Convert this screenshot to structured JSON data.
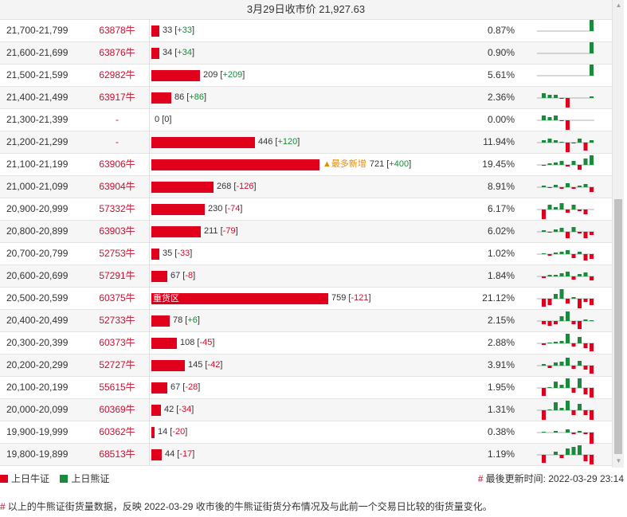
{
  "header": {
    "title": "3月29日收市价 21,927.63"
  },
  "colors": {
    "bull": "#e0001b",
    "bear": "#1a8a3c",
    "accent": "#e88a00"
  },
  "rows": [
    {
      "range": "21,700-21,799",
      "code": "63878牛",
      "qty": 33,
      "qty_text": "33",
      "change": "+33",
      "pct": "0.87%",
      "spark": [
        0,
        0,
        0,
        0,
        0,
        0,
        0,
        0,
        14
      ]
    },
    {
      "range": "21,600-21,699",
      "code": "63876牛",
      "qty": 34,
      "qty_text": "34",
      "change": "+34",
      "pct": "0.90%",
      "spark": [
        0,
        0,
        0,
        0,
        0,
        0,
        0,
        0,
        14
      ]
    },
    {
      "range": "21,500-21,599",
      "code": "62982牛",
      "qty": 209,
      "qty_text": "209",
      "change": "+209",
      "pct": "5.61%",
      "spark": [
        0,
        0,
        0,
        0,
        0,
        0,
        0,
        0,
        14
      ]
    },
    {
      "range": "21,400-21,499",
      "code": "63917牛",
      "qty": 86,
      "qty_text": "86",
      "change": "+86",
      "pct": "2.36%",
      "spark": [
        6,
        4,
        4,
        -1,
        -12,
        0,
        0,
        0,
        2
      ]
    },
    {
      "range": "21,300-21,399",
      "code": "-",
      "qty": 0,
      "qty_text": "0",
      "change": "0",
      "pct": "0.00%",
      "spark": [
        6,
        4,
        6,
        -1,
        -12,
        0,
        0,
        0,
        0
      ]
    },
    {
      "range": "21,200-21,299",
      "code": "-",
      "qty": 446,
      "qty_text": "446",
      "change": "+120",
      "pct": "11.94%",
      "spark": [
        3,
        5,
        3,
        1,
        -12,
        -1,
        5,
        -10,
        3
      ]
    },
    {
      "range": "21,100-21,199",
      "code": "63906牛",
      "qty": 721,
      "qty_text": "721",
      "change": "+400",
      "pct": "19.45%",
      "tag": "▲最多新增",
      "spark": [
        -1,
        2,
        3,
        5,
        -2,
        5,
        -6,
        8,
        12
      ]
    },
    {
      "range": "21,000-21,099",
      "code": "63904牛",
      "qty": 268,
      "qty_text": "268",
      "change": "-126",
      "pct": "8.91%",
      "spark": [
        2,
        -1,
        3,
        -2,
        5,
        -2,
        2,
        4,
        -6
      ]
    },
    {
      "range": "20,900-20,999",
      "code": "57332牛",
      "qty": 230,
      "qty_text": "230",
      "change": "-74",
      "pct": "6.17%",
      "spark": [
        -12,
        6,
        3,
        8,
        -4,
        6,
        -2,
        -6,
        0
      ]
    },
    {
      "range": "20,800-20,899",
      "code": "63903牛",
      "qty": 211,
      "qty_text": "211",
      "change": "-79",
      "pct": "6.02%",
      "spark": [
        2,
        -1,
        3,
        5,
        -8,
        6,
        -2,
        -8,
        -4
      ]
    },
    {
      "range": "20,700-20,799",
      "code": "52753牛",
      "qty": 35,
      "qty_text": "35",
      "change": "-33",
      "pct": "1.02%",
      "spark": [
        1,
        -2,
        2,
        3,
        5,
        -5,
        3,
        -8,
        -6
      ]
    },
    {
      "range": "20,600-20,699",
      "code": "57291牛",
      "qty": 67,
      "qty_text": "67",
      "change": "-8",
      "pct": "1.84%",
      "spark": [
        -2,
        2,
        2,
        4,
        6,
        -4,
        3,
        5,
        -5
      ]
    },
    {
      "range": "20,500-20,599",
      "code": "60375牛",
      "qty": 759,
      "qty_text": "759",
      "change": "-121",
      "pct": "21.12%",
      "bar_label": "重货区",
      "spark": [
        -10,
        -8,
        6,
        12,
        -6,
        2,
        -12,
        -4,
        -8
      ]
    },
    {
      "range": "20,400-20,499",
      "code": "52733牛",
      "qty": 78,
      "qty_text": "78",
      "change": "+6",
      "pct": "2.15%",
      "spark": [
        -4,
        -6,
        -4,
        6,
        12,
        -4,
        -10,
        2,
        1
      ]
    },
    {
      "range": "20,300-20,399",
      "code": "60373牛",
      "qty": 108,
      "qty_text": "108",
      "change": "-45",
      "pct": "2.88%",
      "spark": [
        -2,
        1,
        2,
        3,
        12,
        -4,
        8,
        -6,
        -10
      ]
    },
    {
      "range": "20,200-20,299",
      "code": "52727牛",
      "qty": 145,
      "qty_text": "145",
      "change": "-42",
      "pct": "3.91%",
      "spark": [
        2,
        -3,
        4,
        5,
        10,
        -4,
        6,
        -5,
        -10
      ]
    },
    {
      "range": "20,100-20,199",
      "code": "55615牛",
      "qty": 67,
      "qty_text": "67",
      "change": "-28",
      "pct": "1.95%",
      "spark": [
        -10,
        1,
        8,
        4,
        12,
        -6,
        12,
        -8,
        -12
      ]
    },
    {
      "range": "20,000-20,099",
      "code": "60369牛",
      "qty": 42,
      "qty_text": "42",
      "change": "-34",
      "pct": "1.31%",
      "spark": [
        -12,
        1,
        10,
        3,
        12,
        -6,
        8,
        -6,
        -12
      ]
    },
    {
      "range": "19,900-19,999",
      "code": "60362牛",
      "qty": 14,
      "qty_text": "14",
      "change": "-20",
      "pct": "0.38%",
      "spark": [
        1,
        0,
        2,
        0,
        4,
        -2,
        2,
        -2,
        -14
      ]
    },
    {
      "range": "19,800-19,899",
      "code": "68513牛",
      "qty": 44,
      "qty_text": "44",
      "change": "-17",
      "pct": "1.19%",
      "spark": [
        -10,
        0,
        4,
        -4,
        8,
        10,
        12,
        -8,
        -12
      ]
    }
  ],
  "legend": {
    "bull_label": "上日牛证",
    "bear_label": "上日熊证"
  },
  "footer": {
    "updated": "最後更新时间: 2022-03-29 23:14",
    "note": "以上的牛熊证街货量数据，反映 2022-03-29 收市後的牛熊证街货分布情况及与此前一个交易日比较的街货量变化。"
  }
}
